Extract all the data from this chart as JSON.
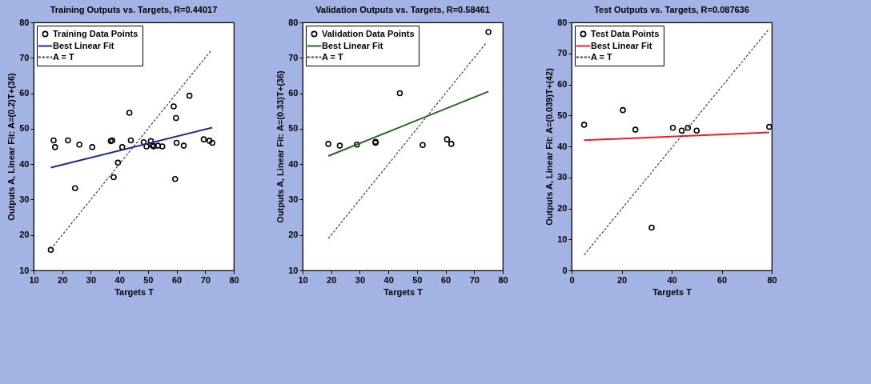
{
  "chart_data": [
    {
      "type": "scatter",
      "title": "Training Outputs vs. Targets, R=0.44017",
      "xlabel": "Targets T",
      "ylabel": "Outputs A,  Linear Fit: A=(0.2)T+(36)",
      "xlim": [
        10,
        80
      ],
      "ylim": [
        10,
        80
      ],
      "xticks": [
        10,
        20,
        30,
        40,
        50,
        60,
        70,
        80
      ],
      "yticks": [
        10,
        20,
        30,
        40,
        50,
        60,
        70,
        80
      ],
      "grid": false,
      "legend": "top left",
      "series": [
        {
          "name": "Training Data Points",
          "type": "scatter",
          "marker": "circle",
          "color": "#000000",
          "x": [
            16,
            17,
            17.5,
            22,
            24.5,
            26,
            30.5,
            37,
            37.5,
            38,
            39.5,
            41,
            43.5,
            44,
            48.5,
            49.5,
            51,
            51.5,
            52,
            53.5,
            55,
            59,
            59.5,
            59.8,
            60,
            62.5,
            64.5,
            69.5,
            71.5,
            72.5
          ],
          "values": [
            15.8,
            46.7,
            44.8,
            46.7,
            33.2,
            45.5,
            44.8,
            46.5,
            46.7,
            36.3,
            40.4,
            44.8,
            54.5,
            46.7,
            46.2,
            45,
            46.5,
            45.3,
            45,
            45.2,
            45,
            56.3,
            35.8,
            53,
            46,
            45.2,
            59.3,
            47,
            46.6,
            46
          ]
        },
        {
          "name": "Best Linear Fit",
          "type": "line",
          "color": "#1f2a8c",
          "x": [
            16,
            72.5
          ],
          "values": [
            39,
            50.3
          ]
        },
        {
          "name": "A = T",
          "type": "line",
          "color": "#404040",
          "line_style": "dashed",
          "x": [
            16,
            72
          ],
          "values": [
            16,
            72
          ]
        }
      ]
    },
    {
      "type": "scatter",
      "title": "Validation Outputs vs. Targets, R=0.58461",
      "xlabel": "Targets T",
      "ylabel": "Outputs A,  Linear Fit: A=(0.33)T+(36)",
      "xlim": [
        10,
        80
      ],
      "ylim": [
        10,
        80
      ],
      "xticks": [
        10,
        20,
        30,
        40,
        50,
        60,
        70,
        80
      ],
      "yticks": [
        10,
        20,
        30,
        40,
        50,
        60,
        70,
        80
      ],
      "grid": false,
      "legend": "top left",
      "series": [
        {
          "name": "Validation Data Points",
          "type": "scatter",
          "marker": "circle",
          "color": "#000000",
          "x": [
            19,
            23,
            29,
            35.5,
            35.5,
            44,
            52,
            60.5,
            62,
            75
          ],
          "values": [
            45.7,
            45.2,
            45.5,
            46,
            46.3,
            60,
            45.4,
            47,
            45.7,
            77.3
          ]
        },
        {
          "name": "Best Linear Fit",
          "type": "line",
          "color": "#1e6b1e",
          "x": [
            19,
            75
          ],
          "values": [
            42.3,
            60.5
          ]
        },
        {
          "name": "A = T",
          "type": "line",
          "color": "#404040",
          "line_style": "dashed",
          "x": [
            19,
            74
          ],
          "values": [
            19,
            74
          ]
        }
      ]
    },
    {
      "type": "scatter",
      "title": "Test Outputs vs. Targets, R=0.087636",
      "xlabel": "Targets T",
      "ylabel": "Outputs A,  Linear Fit: A=(0.039)T+(42)",
      "xlim": [
        0,
        80
      ],
      "ylim": [
        0,
        80
      ],
      "xticks": [
        0,
        20,
        40,
        60,
        80
      ],
      "yticks": [
        0,
        10,
        20,
        30,
        40,
        50,
        60,
        70,
        80
      ],
      "grid": false,
      "legend": "top left",
      "series": [
        {
          "name": "Test Data Points",
          "type": "scatter",
          "marker": "circle",
          "color": "#000000",
          "x": [
            5,
            20.5,
            25.5,
            32,
            40.5,
            44,
            46.5,
            50,
            79
          ],
          "values": [
            47,
            51.7,
            45.4,
            13.8,
            46,
            45.1,
            46,
            45.1,
            46.3
          ]
        },
        {
          "name": "Best Linear Fit",
          "type": "line",
          "color": "#e8202a",
          "x": [
            5,
            79
          ],
          "values": [
            42,
            44.5
          ]
        },
        {
          "name": "A = T",
          "type": "line",
          "color": "#404040",
          "line_style": "dashed",
          "x": [
            5,
            79
          ],
          "values": [
            5,
            78
          ]
        }
      ]
    }
  ]
}
